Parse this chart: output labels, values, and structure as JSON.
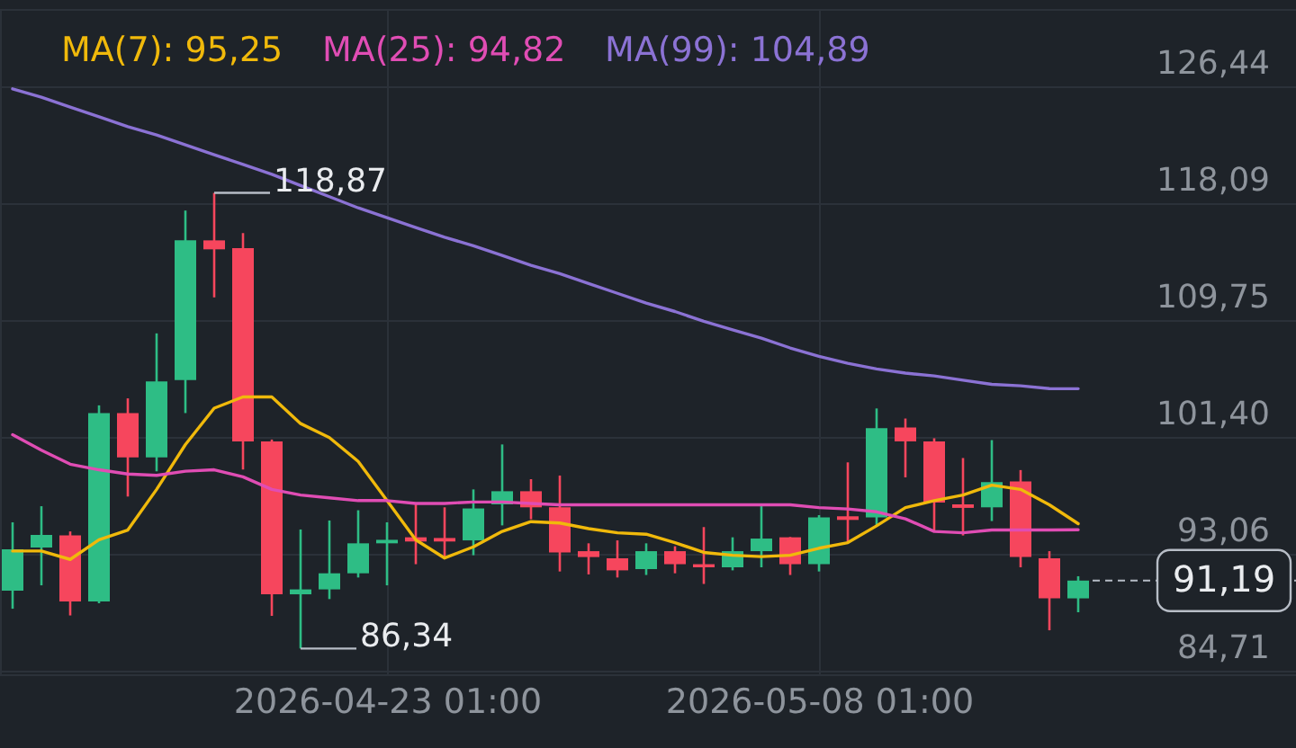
{
  "chart_data": {
    "type": "candlestick",
    "x": [
      "2026-04-10T01:00",
      "2026-04-11T01:00",
      "2026-04-12T01:00",
      "2026-04-13T01:00",
      "2026-04-14T01:00",
      "2026-04-15T01:00",
      "2026-04-16T01:00",
      "2026-04-17T01:00",
      "2026-04-18T01:00",
      "2026-04-19T01:00",
      "2026-04-20T01:00",
      "2026-04-21T01:00",
      "2026-04-22T01:00",
      "2026-04-23T01:00",
      "2026-04-24T01:00",
      "2026-04-25T01:00",
      "2026-04-26T01:00",
      "2026-04-27T01:00",
      "2026-04-28T01:00",
      "2026-04-29T01:00",
      "2026-04-30T01:00",
      "2026-05-01T01:00",
      "2026-05-02T01:00",
      "2026-05-03T01:00",
      "2026-05-04T01:00",
      "2026-05-05T01:00",
      "2026-05-06T01:00",
      "2026-05-07T01:00",
      "2026-05-08T01:00",
      "2026-05-09T01:00",
      "2026-05-10T01:00",
      "2026-05-11T01:00",
      "2026-05-12T01:00",
      "2026-05-13T01:00",
      "2026-05-14T01:00",
      "2026-05-15T01:00",
      "2026-05-16T01:00",
      "2026-05-17T01:00"
    ],
    "ohlc": [
      [
        90.47,
        95.35,
        89.18,
        93.42
      ],
      [
        93.55,
        96.5,
        90.85,
        94.45
      ],
      [
        94.41,
        94.7,
        88.7,
        89.7
      ],
      [
        89.7,
        103.7,
        89.57,
        103.15
      ],
      [
        103.15,
        104.2,
        97.19,
        99.98
      ],
      [
        99.98,
        108.84,
        98.99,
        105.41
      ],
      [
        105.5,
        117.61,
        103.15,
        115.48
      ],
      [
        115.48,
        118.87,
        111.41,
        114.84
      ],
      [
        114.92,
        116.0,
        99.12,
        101.13
      ],
      [
        101.13,
        101.26,
        88.67,
        90.21
      ],
      [
        90.21,
        94.84,
        86.34,
        90.56
      ],
      [
        90.56,
        95.48,
        89.87,
        91.71
      ],
      [
        91.71,
        96.21,
        91.41,
        93.85
      ],
      [
        93.85,
        95.35,
        90.85,
        94.1
      ],
      [
        94.28,
        96.63,
        92.36,
        93.98
      ],
      [
        94.23,
        96.42,
        92.78,
        93.98
      ],
      [
        94.06,
        97.7,
        93.0,
        96.34
      ],
      [
        96.63,
        100.91,
        95.13,
        97.57
      ],
      [
        97.57,
        98.43,
        95.57,
        96.42
      ],
      [
        96.42,
        98.69,
        91.84,
        93.2
      ],
      [
        93.29,
        93.85,
        91.63,
        92.87
      ],
      [
        92.78,
        94.06,
        91.41,
        91.92
      ],
      [
        92.01,
        93.85,
        91.59,
        93.29
      ],
      [
        93.29,
        93.64,
        91.71,
        92.36
      ],
      [
        92.36,
        95.01,
        90.95,
        92.14
      ],
      [
        92.14,
        94.28,
        91.92,
        93.29
      ],
      [
        93.29,
        96.5,
        92.14,
        94.19
      ],
      [
        94.28,
        94.3,
        91.59,
        92.36
      ],
      [
        92.36,
        95.86,
        91.84,
        95.7
      ],
      [
        95.78,
        99.63,
        93.85,
        95.52
      ],
      [
        95.7,
        103.48,
        95.13,
        102.07
      ],
      [
        102.12,
        102.76,
        98.56,
        101.13
      ],
      [
        101.13,
        101.35,
        94.71,
        96.76
      ],
      [
        96.63,
        99.94,
        94.41,
        96.38
      ],
      [
        96.42,
        101.22,
        95.44,
        98.22
      ],
      [
        98.27,
        99.08,
        92.14,
        92.87
      ],
      [
        92.78,
        93.29,
        87.64,
        89.92
      ],
      [
        89.92,
        91.5,
        88.93,
        91.19
      ]
    ],
    "colors": [
      "#2ebd85",
      "#2ebd85",
      "#f6465d",
      "#2ebd85",
      "#f6465d",
      "#2ebd85",
      "#2ebd85",
      "#f6465d",
      "#f6465d",
      "#f6465d",
      "#2ebd85",
      "#2ebd85",
      "#2ebd85",
      "#2ebd85",
      "#f6465d",
      "#f6465d",
      "#2ebd85",
      "#2ebd85",
      "#f6465d",
      "#f6465d",
      "#f6465d",
      "#f6465d",
      "#2ebd85",
      "#f6465d",
      "#f6465d",
      "#2ebd85",
      "#2ebd85",
      "#f6465d",
      "#2ebd85",
      "#f6465d",
      "#2ebd85",
      "#f6465d",
      "#f6465d",
      "#f6465d",
      "#2ebd85",
      "#f6465d",
      "#f6465d",
      "#2ebd85"
    ],
    "series": [
      {
        "name": "MA(7): 95,25",
        "type": "line",
        "color": "#f0b90b",
        "values": [
          93.3,
          93.3,
          92.7,
          94.1,
          94.8,
          97.7,
          100.9,
          103.5,
          104.3,
          104.3,
          102.4,
          101.4,
          99.7,
          96.9,
          94.1,
          92.8,
          93.6,
          94.7,
          95.4,
          95.3,
          94.9,
          94.6,
          94.5,
          93.9,
          93.2,
          93.0,
          92.9,
          93.0,
          93.5,
          93.9,
          95.1,
          96.4,
          96.9,
          97.3,
          98.0,
          97.7,
          96.6,
          95.25
        ]
      },
      {
        "name": "MA(25): 94,82",
        "type": "line",
        "color": "#e04db4",
        "values": [
          101.6,
          100.5,
          99.5,
          99.1,
          98.8,
          98.7,
          99.0,
          99.1,
          98.6,
          97.7,
          97.3,
          97.1,
          96.9,
          96.9,
          96.7,
          96.7,
          96.8,
          96.8,
          96.7,
          96.6,
          96.6,
          96.6,
          96.6,
          96.6,
          96.6,
          96.6,
          96.6,
          96.6,
          96.4,
          96.3,
          96.1,
          95.6,
          94.7,
          94.6,
          94.8,
          94.8,
          94.8,
          94.82
        ]
      },
      {
        "name": "MA(99): 104,89",
        "type": "line",
        "color": "#8b72d4",
        "values": [
          126.3,
          125.7,
          125.0,
          124.3,
          123.6,
          123.0,
          122.3,
          121.6,
          120.9,
          120.2,
          119.4,
          118.6,
          117.8,
          117.1,
          116.4,
          115.7,
          115.1,
          114.4,
          113.7,
          113.1,
          112.4,
          111.7,
          111.0,
          110.4,
          109.7,
          109.1,
          108.5,
          107.8,
          107.2,
          106.7,
          106.3,
          106.0,
          105.8,
          105.5,
          105.2,
          105.1,
          104.9,
          104.89
        ]
      }
    ],
    "xlim": [
      "2026-04-09T14:30",
      "2026-05-24T14:30"
    ],
    "ylim": [
      84.5,
      132.0
    ],
    "xticks": [
      {
        "value": "2026-04-23T01:00",
        "label": "2026-04-23 01:00"
      },
      {
        "value": "2026-05-08T01:00",
        "label": "2026-05-08 01:00"
      }
    ],
    "yticks": [
      {
        "value": 84.71,
        "label": "84,71"
      },
      {
        "value": 93.06,
        "label": "93,06"
      },
      {
        "value": 101.4,
        "label": "101,40"
      },
      {
        "value": 109.75,
        "label": "109,75"
      },
      {
        "value": 118.09,
        "label": "118,09"
      },
      {
        "value": 126.44,
        "label": "126,44"
      }
    ],
    "grid": true,
    "legend": "top left",
    "annotations": [
      {
        "text": "118,87",
        "x": "2026-04-17T01:00",
        "y": 118.87
      },
      {
        "text": "86,34",
        "x": "2026-04-20T01:00",
        "y": 86.34
      }
    ],
    "ref_lines": [
      {
        "axis": "y",
        "value": 91.19,
        "label": "91,19",
        "line_style": "dashed"
      }
    ]
  }
}
